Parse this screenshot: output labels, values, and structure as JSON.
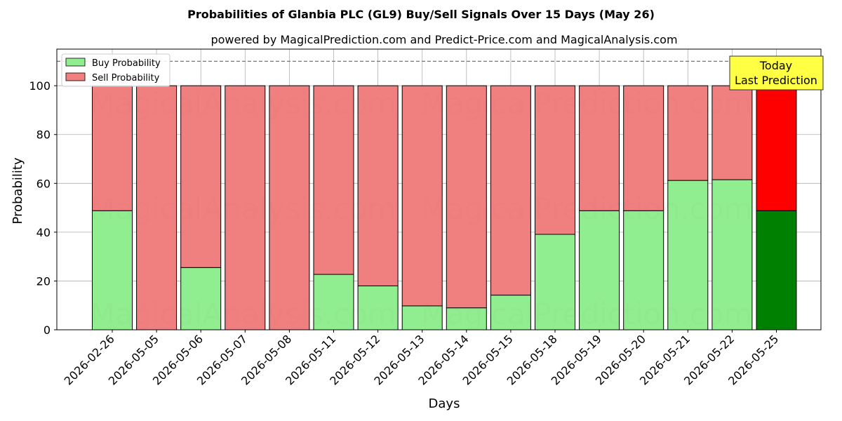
{
  "title": "Probabilities of Glanbia PLC (GL9) Buy/Sell Signals Over 15 Days (May 26)",
  "subtitle": "powered by MagicalPrediction.com and Predict-Price.com and MagicalAnalysis.com",
  "watermarks": [
    "MagicalAnalysis.com",
    "MagicalPrediction.com"
  ],
  "annotation": {
    "line1": "Today",
    "line2": "Last Prediction"
  },
  "colors": {
    "buy": "#90ee90",
    "sell": "#f08080",
    "today_buy": "#008000",
    "today_sell": "#ff0000",
    "annotation_bg": "#ffff44"
  },
  "chart_data": {
    "type": "bar",
    "stacked": true,
    "title": "Probabilities of Glanbia PLC (GL9) Buy/Sell Signals Over 15 Days (May 26)",
    "xlabel": "Days",
    "ylabel": "Probability",
    "ylim": [
      0,
      115
    ],
    "yticks": [
      0,
      20,
      40,
      60,
      80,
      100
    ],
    "reference_line": 110,
    "grid": true,
    "legend_position": "top-left",
    "categories": [
      "2026-02-26",
      "2026-05-05",
      "2026-05-06",
      "2026-05-07",
      "2026-05-08",
      "2026-05-11",
      "2026-05-12",
      "2026-05-13",
      "2026-05-14",
      "2026-05-15",
      "2026-05-18",
      "2026-05-19",
      "2026-05-20",
      "2026-05-21",
      "2026-05-22",
      "2026-05-25"
    ],
    "series": [
      {
        "name": "Buy Probability",
        "values": [
          48.8,
          0,
          25.5,
          0,
          0,
          22.7,
          18.0,
          9.8,
          9.0,
          14.2,
          39.1,
          48.8,
          48.8,
          61.2,
          61.5,
          48.8
        ]
      },
      {
        "name": "Sell Probability",
        "values": [
          51.2,
          100,
          74.5,
          100,
          100,
          77.3,
          82.0,
          90.2,
          91.0,
          85.8,
          60.9,
          51.2,
          51.2,
          38.8,
          38.5,
          51.2
        ]
      }
    ]
  }
}
